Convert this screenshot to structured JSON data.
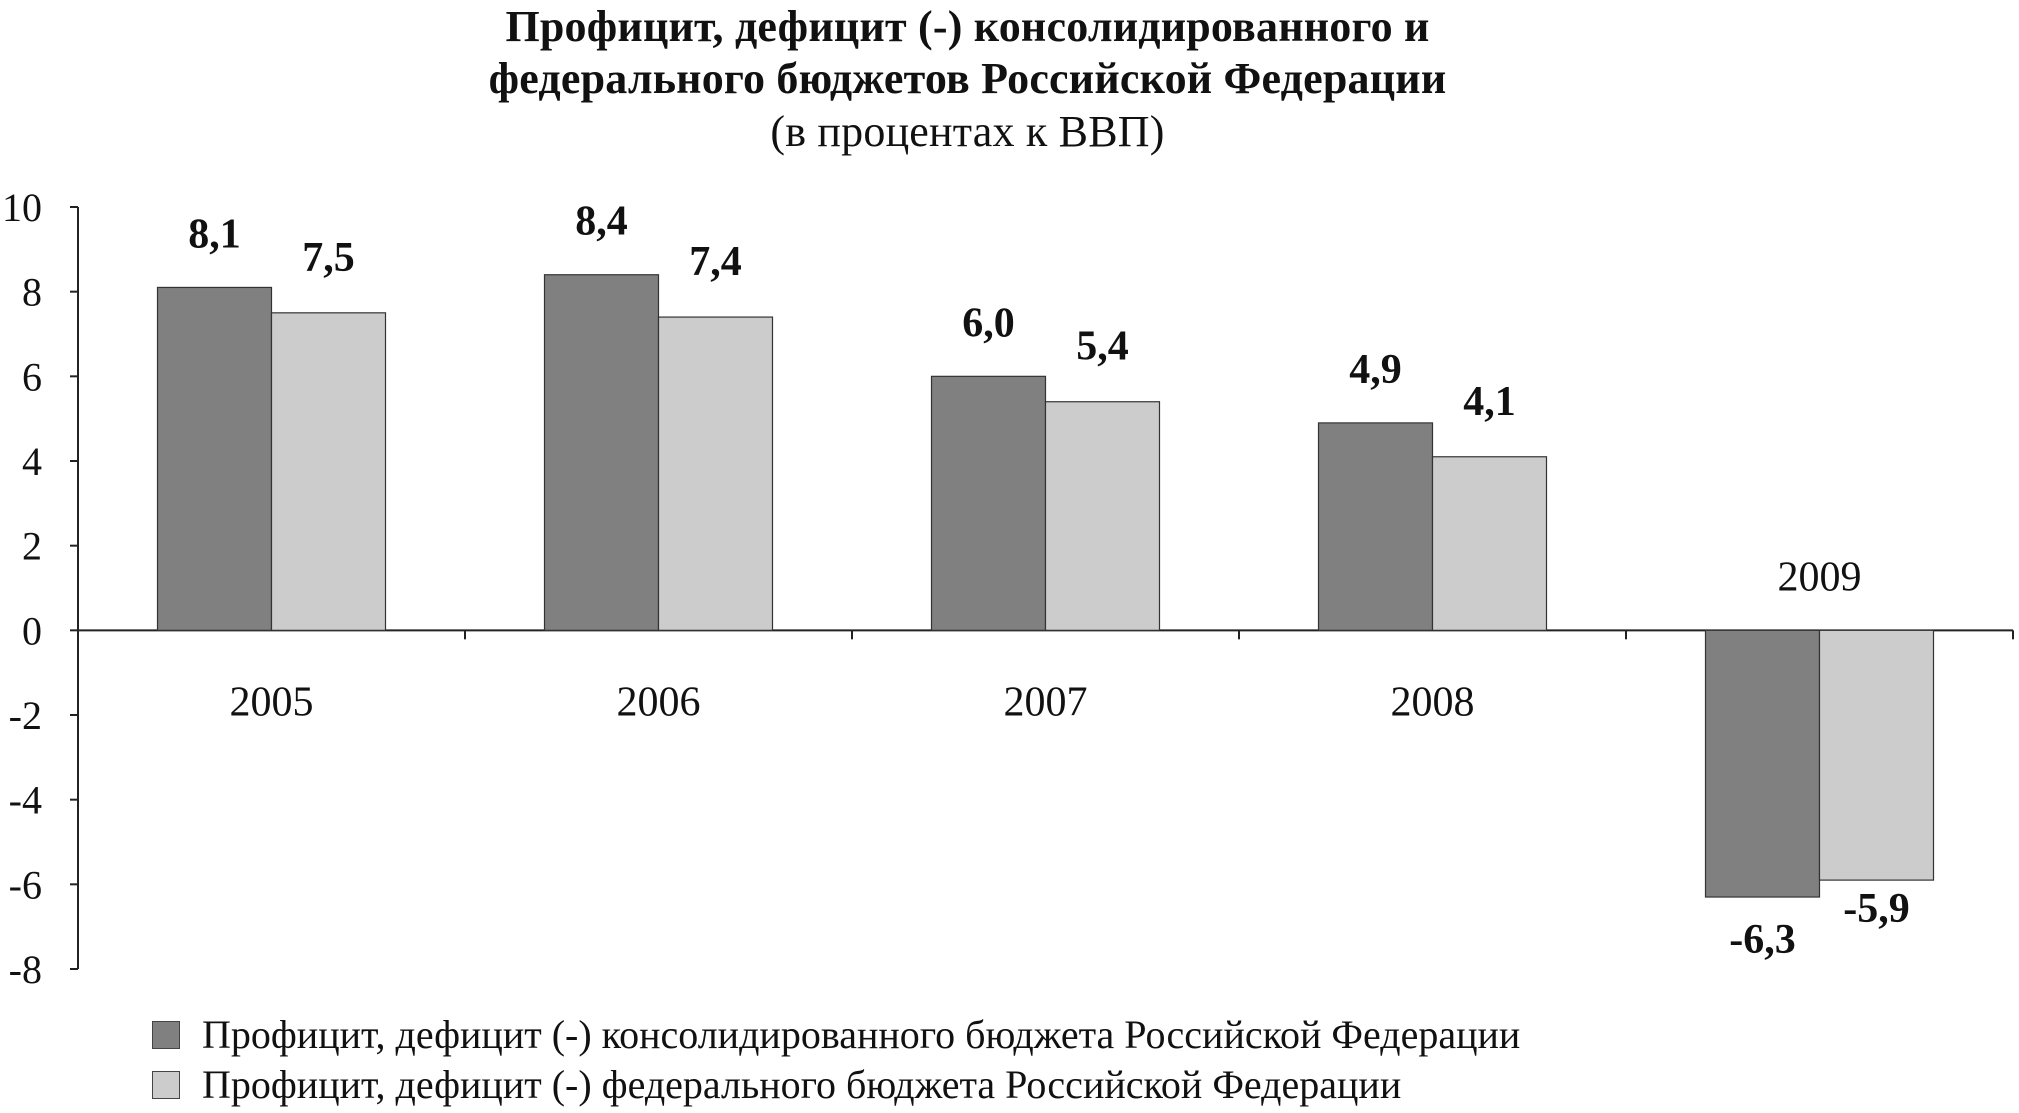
{
  "header": {
    "title_line1": "Профицит, дефицит (-) консолидированного и",
    "title_line2": "федерального бюджетов Российской Федерации",
    "subtitle": "(в процентах к ВВП)"
  },
  "colors": {
    "series1": "#808080",
    "series2": "#cccccc",
    "axis": "#222222"
  },
  "chart_data": {
    "type": "bar",
    "title": "Профицит, дефицит (-) консолидированного и федерального бюджетов Российской Федерации",
    "subtitle": "(в процентах к ВВП)",
    "categories": [
      "2005",
      "2006",
      "2007",
      "2008",
      "2009"
    ],
    "series": [
      {
        "name": "Профицит, дефицит (-) консолидированного бюджета Российской Федерации",
        "values": [
          8.1,
          8.4,
          6.0,
          4.9,
          -6.3
        ],
        "labels": [
          "8,1",
          "8,4",
          "6,0",
          "4,9",
          "-6,3"
        ]
      },
      {
        "name": "Профицит, дефицит (-) федерального бюджета Российской Федерации",
        "values": [
          7.5,
          7.4,
          5.4,
          4.1,
          -5.9
        ],
        "labels": [
          "7,5",
          "7,4",
          "5,4",
          "4,1",
          "-5,9"
        ]
      }
    ],
    "ylim": [
      -8,
      10
    ],
    "yticks": [
      10,
      8,
      6,
      4,
      2,
      0,
      -2,
      -4,
      -6,
      -8
    ],
    "xlabel": "",
    "ylabel": "",
    "grid": false,
    "legend_position": "bottom-left"
  }
}
